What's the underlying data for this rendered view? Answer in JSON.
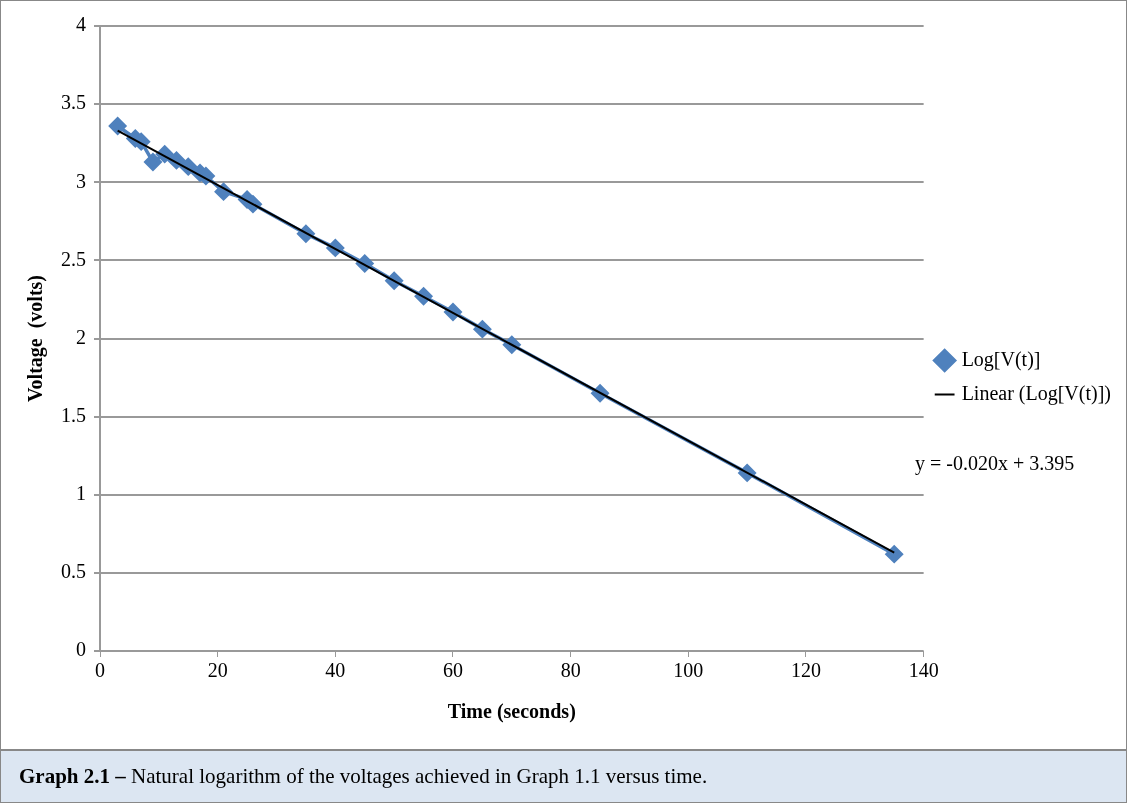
{
  "chart_data": {
    "type": "line",
    "xlabel": "Time (seconds)",
    "ylabel": "Voltage  (volts)",
    "x": [
      3,
      6,
      7,
      9,
      11,
      13,
      15,
      17,
      18,
      21,
      25,
      26,
      35,
      40,
      45,
      50,
      55,
      60,
      65,
      70,
      85,
      110,
      135
    ],
    "series": [
      {
        "name": "Log[V(t)]",
        "color": "#4f81bd",
        "marker": "diamond",
        "values": [
          3.36,
          3.28,
          3.26,
          3.13,
          3.18,
          3.14,
          3.1,
          3.06,
          3.04,
          2.94,
          2.89,
          2.86,
          2.67,
          2.58,
          2.48,
          2.37,
          2.27,
          2.17,
          2.06,
          1.96,
          1.65,
          1.14,
          0.62
        ]
      },
      {
        "name": "Linear (Log[V(t)])",
        "color": "#000000",
        "marker": "none",
        "x": [
          3,
          135
        ],
        "values": [
          3.33,
          0.63
        ]
      }
    ],
    "xlim": [
      0,
      140
    ],
    "xticks": [
      0,
      20,
      40,
      60,
      80,
      100,
      120,
      140
    ],
    "ylim": [
      0,
      4
    ],
    "yticks": [
      0,
      0.5,
      1,
      1.5,
      2,
      2.5,
      3,
      3.5,
      4
    ],
    "grid": "y",
    "legend": "right",
    "annotations": [
      "y = -0.020x + 3.395",
      "Graph 2.1 – Natural logarithm of the voltages achieved in Graph 1.1 versus time."
    ]
  }
}
